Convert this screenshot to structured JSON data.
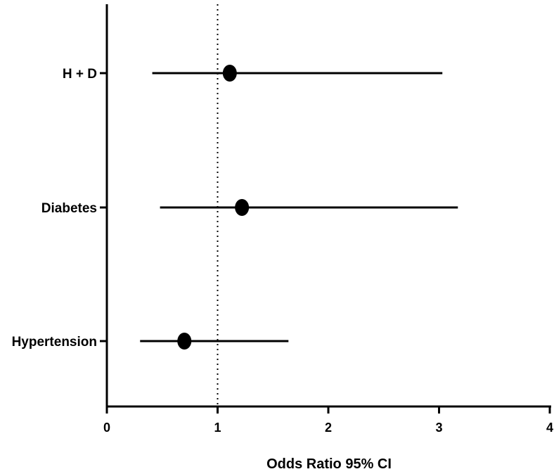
{
  "chart_data": {
    "type": "forest",
    "xlabel": "Odds Ratio 95% CI",
    "xlim": [
      0,
      4
    ],
    "xticks": [
      "0",
      "1",
      "2",
      "3",
      "4"
    ],
    "reference_line": 1,
    "grid": false,
    "categories": [
      "H + D",
      "Diabetes",
      "Hypertension"
    ],
    "estimates": [
      {
        "label": "H + D",
        "or": 1.11,
        "lower": 0.41,
        "upper": 3.03
      },
      {
        "label": "Diabetes",
        "or": 1.22,
        "lower": 0.48,
        "upper": 3.17
      },
      {
        "label": "Hypertension",
        "or": 0.7,
        "lower": 0.3,
        "upper": 1.64
      }
    ],
    "colors": {
      "marks": "#000000",
      "background": "#ffffff"
    }
  }
}
